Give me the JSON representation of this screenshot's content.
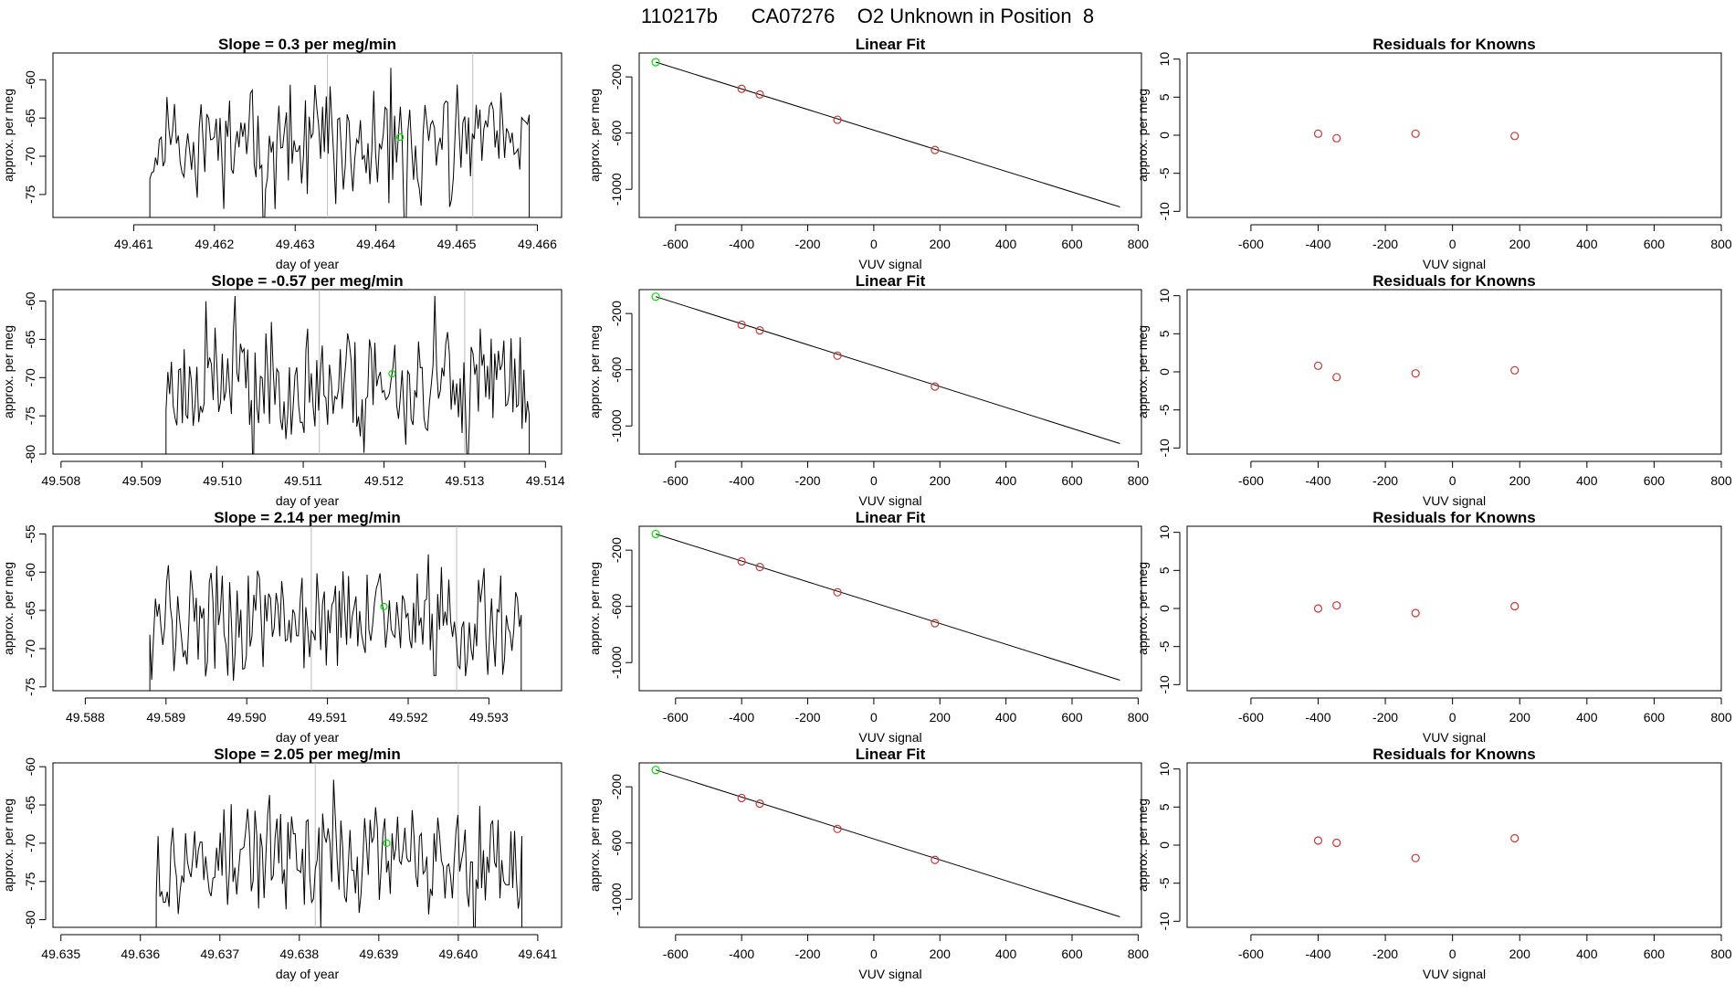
{
  "figure_title": "110217b      CA07276    O2 Unknown in Position  8",
  "colors": {
    "line": "#000000",
    "known": "#cd3333",
    "unknown": "#00dd00",
    "vline": "#bebebe",
    "fit": "#000000"
  },
  "chart_data": [
    {
      "type": "line",
      "panel": "timeseries",
      "title": "Slope =  0.3  per meg/min",
      "xlabel": "day of year",
      "ylabel": "approx. per meg",
      "xlim": [
        49.46,
        49.4663
      ],
      "ylim": [
        -78,
        -56.5
      ],
      "xticks": [
        "49.461",
        "49.462",
        "49.463",
        "49.464",
        "49.465",
        "49.466"
      ],
      "yticks": [
        "-60",
        "-65",
        "-70",
        "-75"
      ],
      "trace_range": [
        49.4612,
        49.4659
      ],
      "vlines": [
        49.4634,
        49.4652
      ],
      "unknown_point": [
        49.4643,
        -67.5
      ],
      "seed": 11
    },
    {
      "type": "line",
      "panel": "timeseries",
      "title": "Slope =  -0.57  per meg/min",
      "xlabel": "day of year",
      "ylabel": "approx. per meg",
      "xlim": [
        49.5079,
        49.5142
      ],
      "ylim": [
        -80,
        -58.5
      ],
      "xticks": [
        "49.508",
        "49.509",
        "49.510",
        "49.511",
        "49.512",
        "49.513",
        "49.514"
      ],
      "yticks": [
        "-60",
        "-65",
        "-70",
        "-75",
        "-80"
      ],
      "trace_range": [
        49.5093,
        49.5138
      ],
      "vlines": [
        49.5112,
        49.513
      ],
      "unknown_point": [
        49.5121,
        -69.5
      ],
      "seed": 23
    },
    {
      "type": "line",
      "panel": "timeseries",
      "title": "Slope =  2.14  per meg/min",
      "xlabel": "day of year",
      "ylabel": "approx. per meg",
      "xlim": [
        49.5876,
        49.5939
      ],
      "ylim": [
        -75.5,
        -54
      ],
      "xticks": [
        "49.588",
        "49.589",
        "49.590",
        "49.591",
        "49.592",
        "49.593"
      ],
      "yticks": [
        "-55",
        "-60",
        "-65",
        "-70",
        "-75"
      ],
      "trace_range": [
        49.5888,
        49.5934
      ],
      "vlines": [
        49.5908,
        49.5926
      ],
      "unknown_point": [
        49.5917,
        -64.5
      ],
      "seed": 37
    },
    {
      "type": "line",
      "panel": "timeseries",
      "title": "Slope =  2.05  per meg/min",
      "xlabel": "day of year",
      "ylabel": "approx. per meg",
      "xlim": [
        49.6349,
        49.6413
      ],
      "ylim": [
        -81,
        -59.5
      ],
      "xticks": [
        "49.635",
        "49.636",
        "49.637",
        "49.638",
        "49.639",
        "49.640",
        "49.641"
      ],
      "yticks": [
        "-60",
        "-65",
        "-70",
        "-75",
        "-80"
      ],
      "trace_range": [
        49.6362,
        49.6408
      ],
      "vlines": [
        49.6382,
        49.64
      ],
      "unknown_point": [
        49.6391,
        -70
      ],
      "seed": 53
    },
    {
      "type": "scatter",
      "panel": "fit",
      "title": "Linear Fit",
      "xlabel": "VUV signal",
      "ylabel": "approx. per meg",
      "xlim": [
        -710,
        810
      ],
      "ylim": [
        -1200,
        -30
      ],
      "xticks": [
        "-600",
        "-400",
        "-200",
        "0",
        "200",
        "400",
        "600",
        "800"
      ],
      "yticks": [
        "-200",
        "-600",
        "-1000"
      ],
      "fit_line": [
        [
          -660,
          -95
        ],
        [
          745,
          -1125
        ]
      ],
      "knowns": [
        [
          -400,
          -285
        ],
        [
          -345,
          -325
        ],
        [
          -110,
          -505
        ],
        [
          185,
          -720
        ]
      ],
      "unknown": [
        -660,
        -95
      ]
    },
    {
      "type": "scatter",
      "panel": "fit",
      "title": "Linear Fit",
      "xlabel": "VUV signal",
      "ylabel": "approx. per meg",
      "xlim": [
        -710,
        810
      ],
      "ylim": [
        -1200,
        -30
      ],
      "xticks": [
        "-600",
        "-400",
        "-200",
        "0",
        "200",
        "400",
        "600",
        "800"
      ],
      "yticks": [
        "-200",
        "-600",
        "-1000"
      ],
      "fit_line": [
        [
          -660,
          -80
        ],
        [
          745,
          -1125
        ]
      ],
      "knowns": [
        [
          -400,
          -280
        ],
        [
          -345,
          -320
        ],
        [
          -110,
          -500
        ],
        [
          185,
          -720
        ]
      ],
      "unknown": [
        -660,
        -80
      ]
    },
    {
      "type": "scatter",
      "panel": "fit",
      "title": "Linear Fit",
      "xlabel": "VUV signal",
      "ylabel": "approx. per meg",
      "xlim": [
        -710,
        810
      ],
      "ylim": [
        -1200,
        -30
      ],
      "xticks": [
        "-600",
        "-400",
        "-200",
        "0",
        "200",
        "400",
        "600",
        "800"
      ],
      "yticks": [
        "-200",
        "-600",
        "-1000"
      ],
      "fit_line": [
        [
          -660,
          -85
        ],
        [
          745,
          -1125
        ]
      ],
      "knowns": [
        [
          -400,
          -280
        ],
        [
          -345,
          -320
        ],
        [
          -110,
          -500
        ],
        [
          185,
          -720
        ]
      ],
      "unknown": [
        -660,
        -85
      ]
    },
    {
      "type": "scatter",
      "panel": "fit",
      "title": "Linear Fit",
      "xlabel": "VUV signal",
      "ylabel": "approx. per meg",
      "xlim": [
        -710,
        810
      ],
      "ylim": [
        -1200,
        -30
      ],
      "xticks": [
        "-600",
        "-400",
        "-200",
        "0",
        "200",
        "400",
        "600",
        "800"
      ],
      "yticks": [
        "-200",
        "-600",
        "-1000"
      ],
      "fit_line": [
        [
          -660,
          -80
        ],
        [
          745,
          -1125
        ]
      ],
      "knowns": [
        [
          -400,
          -280
        ],
        [
          -345,
          -320
        ],
        [
          -110,
          -500
        ],
        [
          185,
          -720
        ]
      ],
      "unknown": [
        -660,
        -80
      ]
    },
    {
      "type": "scatter",
      "panel": "residual",
      "title": "Residuals for Knowns",
      "xlabel": "VUV signal",
      "ylabel": "approx. per meg",
      "xlim": [
        -790,
        800
      ],
      "ylim": [
        -10.8,
        10.8
      ],
      "xticks": [
        "-600",
        "-400",
        "-200",
        "0",
        "200",
        "400",
        "600",
        "800"
      ],
      "yticks": [
        "10",
        "5",
        "0",
        "-5",
        "-10"
      ],
      "points": [
        [
          -400,
          0.2
        ],
        [
          -345,
          -0.4
        ],
        [
          -110,
          0.2
        ],
        [
          185,
          -0.1
        ]
      ]
    },
    {
      "type": "scatter",
      "panel": "residual",
      "title": "Residuals for Knowns",
      "xlabel": "VUV signal",
      "ylabel": "approx. per meg",
      "xlim": [
        -790,
        800
      ],
      "ylim": [
        -10.8,
        10.8
      ],
      "xticks": [
        "-600",
        "-400",
        "-200",
        "0",
        "200",
        "400",
        "600",
        "800"
      ],
      "yticks": [
        "10",
        "5",
        "0",
        "-5",
        "-10"
      ],
      "points": [
        [
          -400,
          0.8
        ],
        [
          -345,
          -0.7
        ],
        [
          -110,
          -0.2
        ],
        [
          185,
          0.2
        ]
      ]
    },
    {
      "type": "scatter",
      "panel": "residual",
      "title": "Residuals for Knowns",
      "xlabel": "VUV signal",
      "ylabel": "approx. per meg",
      "xlim": [
        -790,
        800
      ],
      "ylim": [
        -10.8,
        10.8
      ],
      "xticks": [
        "-600",
        "-400",
        "-200",
        "0",
        "200",
        "400",
        "600",
        "800"
      ],
      "yticks": [
        "10",
        "5",
        "0",
        "-5",
        "-10"
      ],
      "points": [
        [
          -400,
          0.0
        ],
        [
          -345,
          0.4
        ],
        [
          -110,
          -0.6
        ],
        [
          185,
          0.3
        ]
      ]
    },
    {
      "type": "scatter",
      "panel": "residual",
      "title": "Residuals for Knowns",
      "xlabel": "VUV signal",
      "ylabel": "approx. per meg",
      "xlim": [
        -790,
        800
      ],
      "ylim": [
        -10.8,
        10.8
      ],
      "xticks": [
        "-600",
        "-400",
        "-200",
        "0",
        "200",
        "400",
        "600",
        "800"
      ],
      "yticks": [
        "10",
        "5",
        "0",
        "-5",
        "-10"
      ],
      "points": [
        [
          -400,
          0.6
        ],
        [
          -345,
          0.3
        ],
        [
          -110,
          -1.7
        ],
        [
          185,
          0.9
        ]
      ]
    }
  ]
}
